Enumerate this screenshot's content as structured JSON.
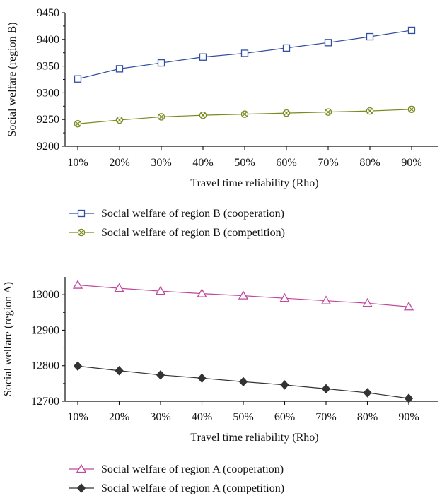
{
  "chart_data": [
    {
      "type": "line",
      "categories": [
        "10%",
        "20%",
        "30%",
        "40%",
        "50%",
        "60%",
        "70%",
        "80%",
        "90%"
      ],
      "xlabel": "Travel time reliability (Rho)",
      "ylabel": "Social welfare (region B)",
      "ylim": [
        9200,
        9450
      ],
      "yticks": [
        "9200",
        "9250",
        "9300",
        "9350",
        "9400",
        "9450"
      ],
      "grid": false,
      "legend": "below",
      "series": [
        {
          "name": "Social welfare of region B (cooperation)",
          "marker": "open-square",
          "color": "#2f4ea0",
          "values": [
            9326,
            9345,
            9356,
            9367,
            9374,
            9384,
            9394,
            9405,
            9417
          ]
        },
        {
          "name": "Social welfare of region B (competition)",
          "marker": "circle-x",
          "color": "#7a8a1e",
          "values": [
            9242,
            9249,
            9255,
            9258,
            9260,
            9262,
            9264,
            9266,
            9269
          ]
        }
      ]
    },
    {
      "type": "line",
      "categories": [
        "10%",
        "20%",
        "30%",
        "40%",
        "50%",
        "60%",
        "70%",
        "80%",
        "90%"
      ],
      "xlabel": "Travel time reliability (Rho)",
      "ylabel": "Social welfare (region A)",
      "ylim": [
        12700,
        13050
      ],
      "yticks": [
        "12700",
        "12800",
        "12900",
        "13000"
      ],
      "grid": false,
      "legend": "below",
      "series": [
        {
          "name": "Social welfare of region A (cooperation)",
          "marker": "open-triangle",
          "color": "#c0479a",
          "values": [
            13027,
            13018,
            13010,
            13003,
            12997,
            12990,
            12983,
            12976,
            12966
          ]
        },
        {
          "name": "Social welfare of region A (competition)",
          "marker": "filled-diamond",
          "color": "#333333",
          "values": [
            12799,
            12786,
            12774,
            12765,
            12755,
            12746,
            12735,
            12724,
            12708
          ]
        }
      ]
    }
  ]
}
